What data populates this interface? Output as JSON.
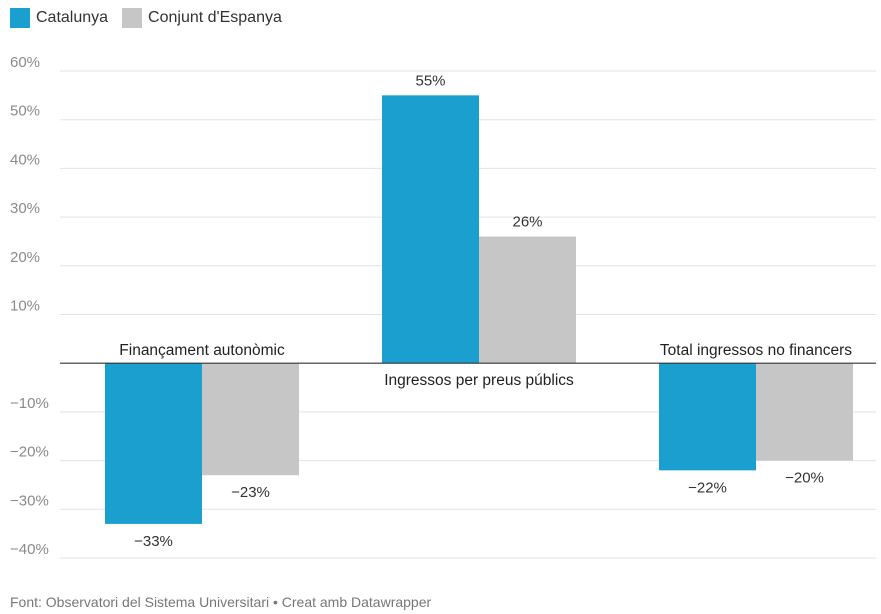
{
  "chart_data": {
    "type": "bar",
    "categories": [
      "Finançament autonòmic",
      "Ingressos per preus públics",
      "Total ingressos no financers"
    ],
    "series": [
      {
        "name": "Catalunya",
        "values": [
          -33,
          55,
          -22
        ],
        "labels": [
          "−33%",
          "55%",
          "−22%"
        ],
        "color": "#1a9fce"
      },
      {
        "name": "Conjunt d'Espanya",
        "values": [
          -23,
          26,
          -20
        ],
        "labels": [
          "−23%",
          "26%",
          "−20%"
        ],
        "color": "#c6c6c6"
      }
    ],
    "ylim": [
      -40,
      60
    ],
    "yticks": [
      60,
      50,
      40,
      30,
      20,
      10,
      -10,
      -20,
      -30,
      -40
    ],
    "ytick_labels": [
      "60%",
      "50%",
      "40%",
      "30%",
      "20%",
      "10%",
      "−10%",
      "−20%",
      "−30%",
      "−40%"
    ],
    "grid": true,
    "legend_position": "top-left"
  },
  "legend": {
    "items": [
      {
        "label": "Catalunya",
        "color": "#1a9fce"
      },
      {
        "label": "Conjunt d'Espanya",
        "color": "#c6c6c6"
      }
    ]
  },
  "footer": {
    "source": "Font: Observatori del Sistema Universitari • Creat amb Datawrapper"
  }
}
